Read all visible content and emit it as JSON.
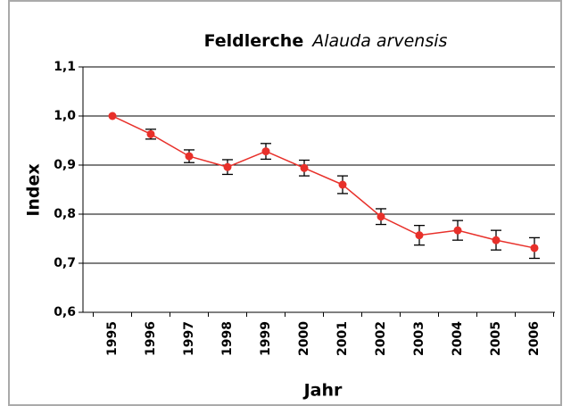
{
  "chart_data": {
    "type": "line",
    "title": "Feldlerche",
    "subtitle": "Alauda arvensis",
    "xlabel": "Jahr",
    "ylabel": "Index",
    "categories": [
      "1995",
      "1996",
      "1997",
      "1998",
      "1999",
      "2000",
      "2001",
      "2002",
      "2003",
      "2004",
      "2005",
      "2006"
    ],
    "series": [
      {
        "name": "Feldlerche",
        "color": "#e8302a",
        "values": [
          1.0,
          0.963,
          0.918,
          0.896,
          0.928,
          0.894,
          0.86,
          0.795,
          0.757,
          0.767,
          0.747,
          0.731
        ],
        "errors": [
          0,
          0.01,
          0.013,
          0.015,
          0.016,
          0.016,
          0.018,
          0.016,
          0.02,
          0.02,
          0.02,
          0.021
        ]
      }
    ],
    "ylim": [
      0.6,
      1.1
    ],
    "yticks": [
      {
        "value": 0.6,
        "label": "0,6"
      },
      {
        "value": 0.7,
        "label": "0,7"
      },
      {
        "value": 0.8,
        "label": "0,8"
      },
      {
        "value": 0.9,
        "label": "0,9"
      },
      {
        "value": 1.0,
        "label": "1,0"
      },
      {
        "value": 1.1,
        "label": "1,1"
      }
    ],
    "grid": true
  }
}
